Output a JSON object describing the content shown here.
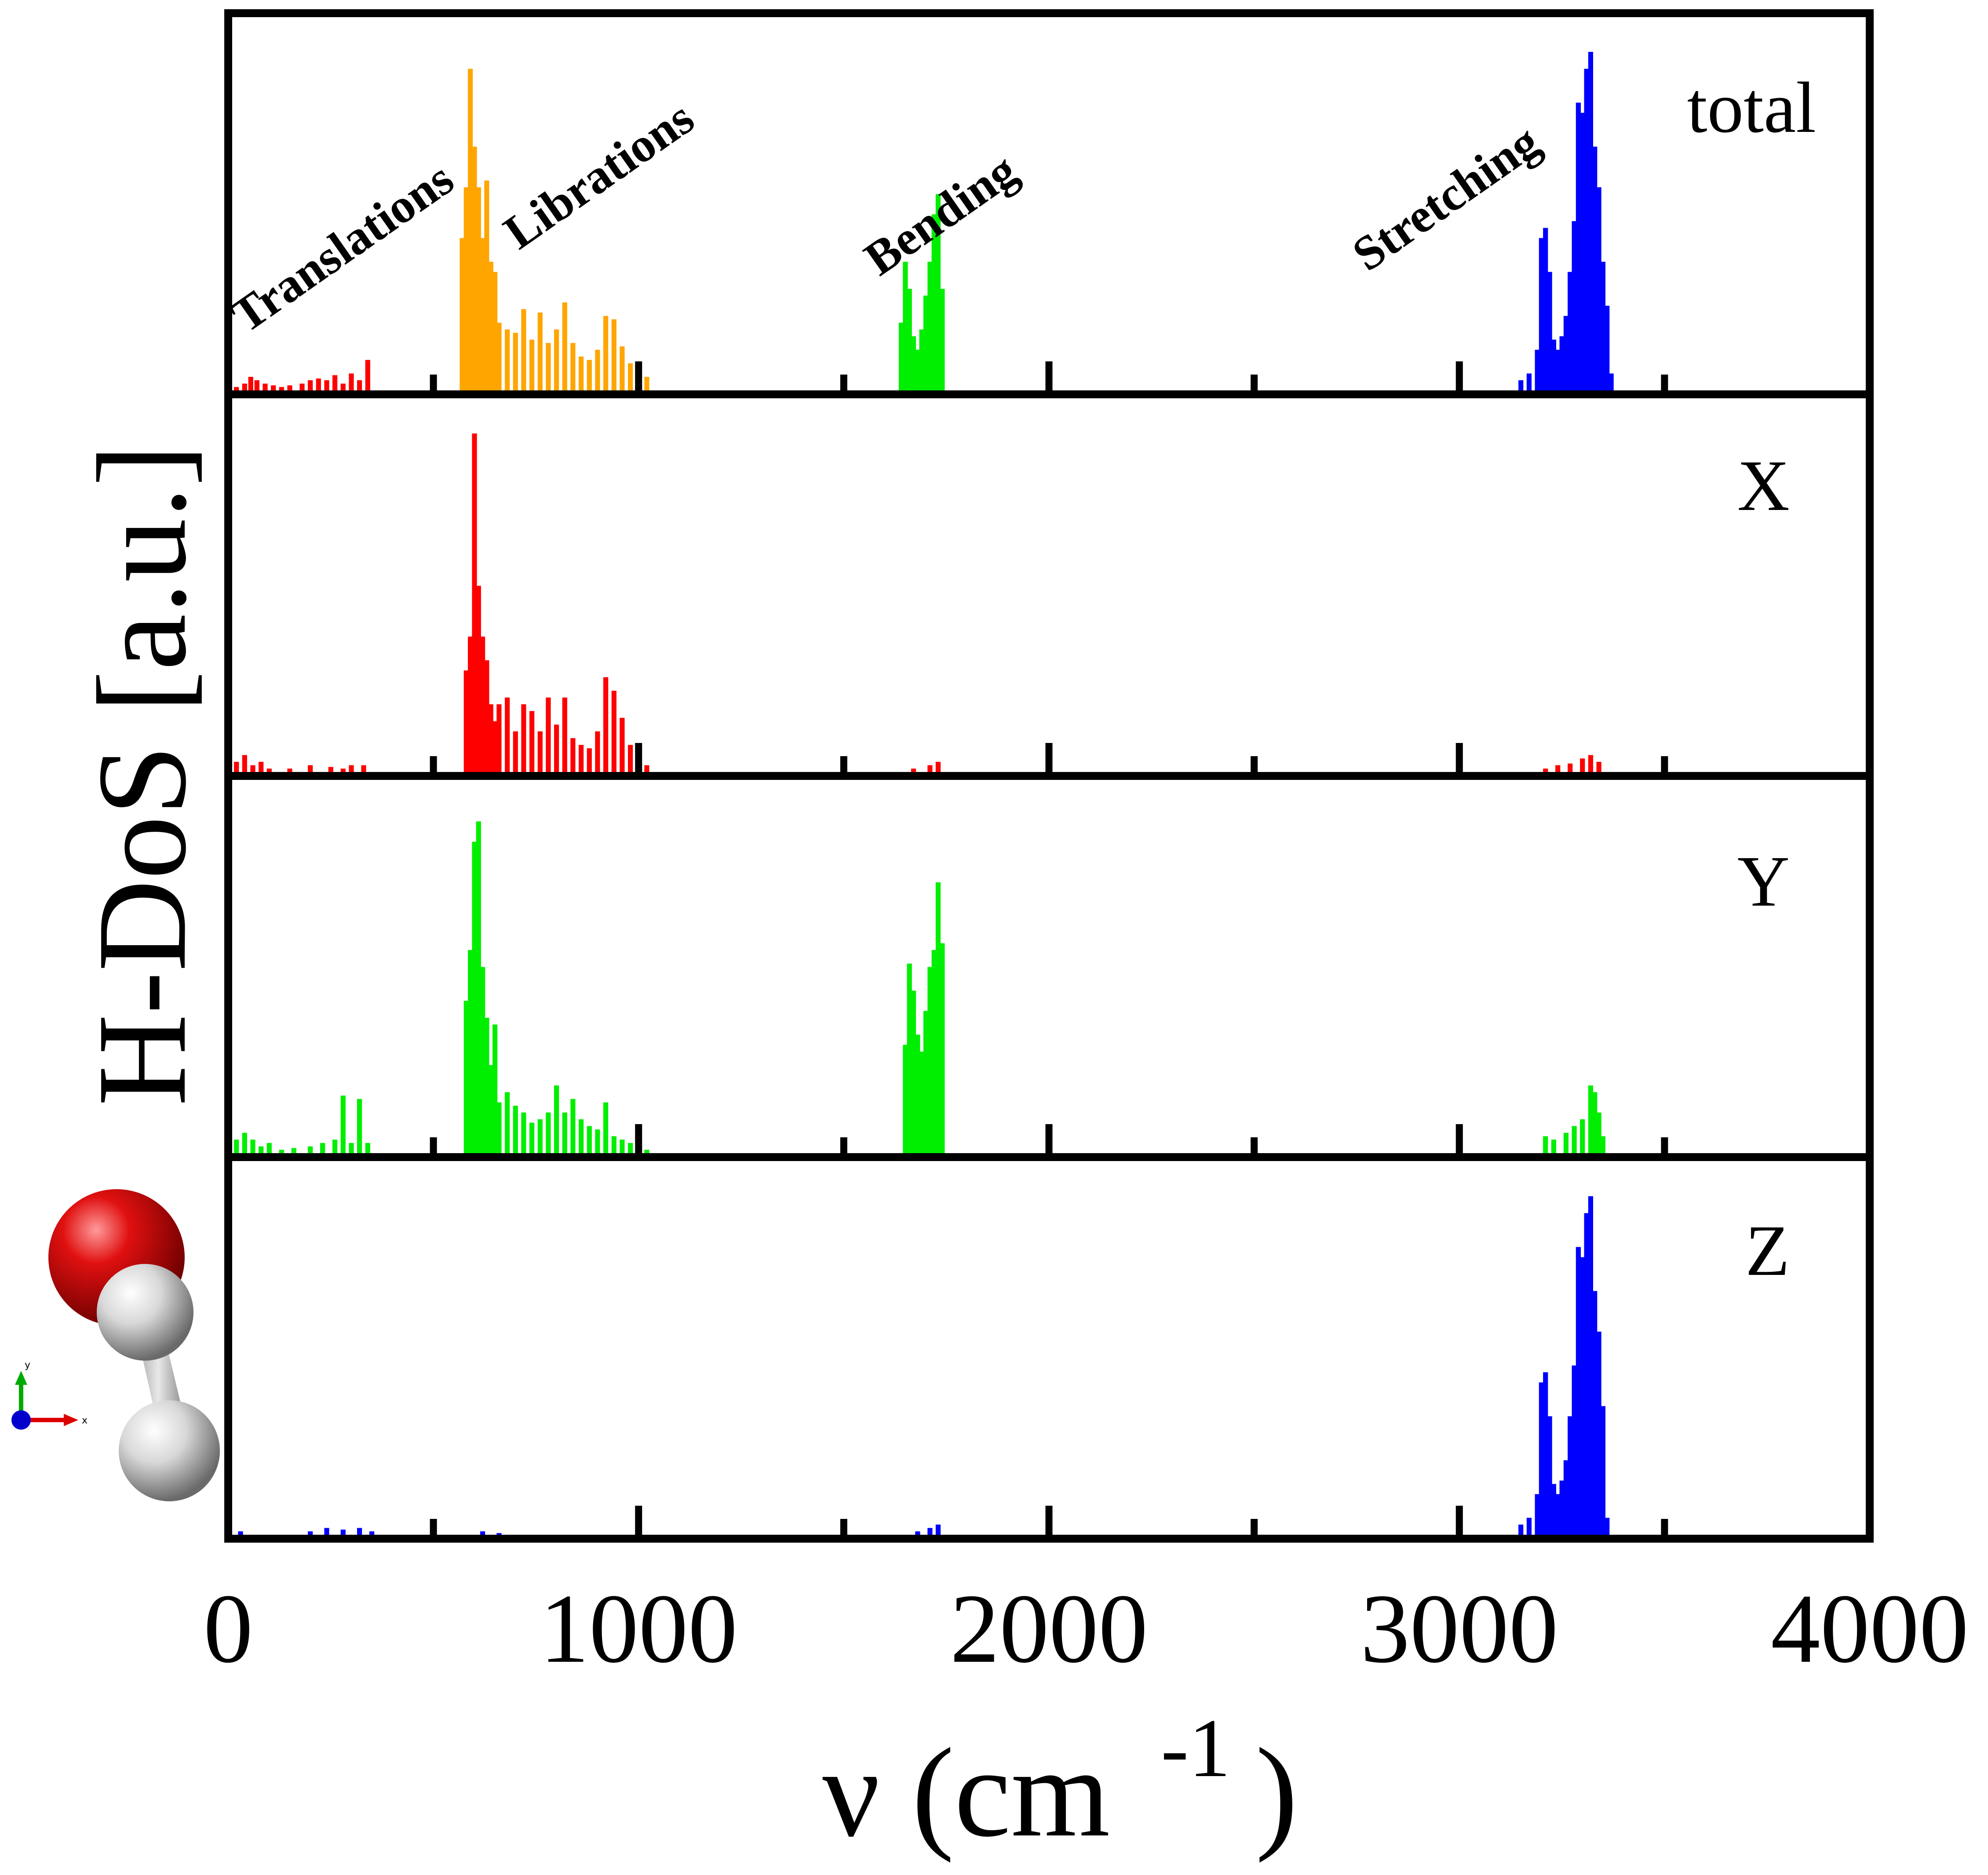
{
  "chart_data": {
    "type": "bar",
    "xlabel": "ν (cm",
    "xlabel_sup": "-1",
    "xlabel_close": ")",
    "ylabel": "H-DoS [a.u.]",
    "xlim": [
      0,
      4000
    ],
    "xticks": [
      "0",
      "1000",
      "2000",
      "3000",
      "4000"
    ],
    "bin_width_cm": 12,
    "mode_labels": [
      {
        "text": "Translations",
        "x": 40,
        "color": "#ff0000"
      },
      {
        "text": "Librations",
        "x": 650,
        "color": "#ffa500"
      },
      {
        "text": "Bending",
        "x": 1550,
        "color": "#00ee00"
      },
      {
        "text": "Stretching",
        "x": 2740,
        "color": "#0000ff"
      }
    ],
    "panels": [
      {
        "name": "total",
        "label": "total",
        "series": [
          {
            "band": "Translations",
            "color": "#ff0000",
            "x": [
              20,
              40,
              55,
              70,
              90,
              110,
              130,
              150,
              180,
              200,
              220,
              240,
              260,
              280,
              300,
              320,
              340
            ],
            "values": [
              0.01,
              0.02,
              0.04,
              0.03,
              0.02,
              0.015,
              0.01,
              0.015,
              0.02,
              0.03,
              0.035,
              0.03,
              0.045,
              0.02,
              0.05,
              0.03,
              0.09
            ]
          },
          {
            "band": "Librations",
            "color": "#ffa500",
            "x": [
              570,
              580,
              590,
              600,
              610,
              620,
              630,
              640,
              650,
              660,
              680,
              700,
              720,
              740,
              760,
              780,
              800,
              820,
              840,
              860,
              880,
              900,
              920,
              940,
              960,
              980,
              1000,
              1020
            ],
            "values": [
              0.45,
              0.6,
              0.95,
              0.72,
              0.6,
              0.45,
              0.62,
              0.38,
              0.35,
              0.2,
              0.18,
              0.17,
              0.24,
              0.15,
              0.23,
              0.14,
              0.18,
              0.26,
              0.14,
              0.1,
              0.09,
              0.12,
              0.22,
              0.21,
              0.13,
              0.08,
              0.05,
              0.04
            ]
          },
          {
            "band": "Bending",
            "color": "#00ee00",
            "x": [
              1640,
              1650,
              1660,
              1670,
              1680,
              1690,
              1700,
              1710,
              1720,
              1730,
              1740
            ],
            "values": [
              0.2,
              0.38,
              0.3,
              0.16,
              0.12,
              0.18,
              0.28,
              0.38,
              0.52,
              0.58,
              0.3
            ]
          },
          {
            "band": "Stretching",
            "color": "#0000ff",
            "x": [
              3150,
              3170,
              3190,
              3200,
              3210,
              3220,
              3230,
              3240,
              3250,
              3260,
              3270,
              3280,
              3290,
              3300,
              3310,
              3320,
              3330,
              3340,
              3350,
              3360,
              3370
            ],
            "values": [
              0.03,
              0.05,
              0.12,
              0.45,
              0.48,
              0.35,
              0.15,
              0.12,
              0.16,
              0.22,
              0.35,
              0.5,
              0.85,
              0.82,
              0.95,
              1.0,
              0.72,
              0.6,
              0.38,
              0.25,
              0.05
            ]
          }
        ]
      },
      {
        "name": "X",
        "label": "X",
        "series": [
          {
            "band": "all",
            "color": "#ff0000",
            "x": [
              20,
              40,
              60,
              80,
              100,
              150,
              200,
              250,
              280,
              300,
              330,
              580,
              590,
              600,
              610,
              620,
              630,
              640,
              650,
              660,
              680,
              700,
              720,
              740,
              760,
              780,
              800,
              820,
              840,
              860,
              880,
              900,
              920,
              940,
              960,
              980,
              1000,
              1020,
              1670,
              1710,
              1730,
              3210,
              3240,
              3270,
              3300,
              3320,
              3340
            ],
            "values": [
              0.03,
              0.05,
              0.02,
              0.03,
              0.01,
              0.01,
              0.02,
              0.015,
              0.01,
              0.02,
              0.02,
              0.3,
              0.4,
              1.0,
              0.55,
              0.4,
              0.33,
              0.2,
              0.15,
              0.2,
              0.22,
              0.12,
              0.2,
              0.18,
              0.12,
              0.22,
              0.14,
              0.22,
              0.1,
              0.08,
              0.07,
              0.12,
              0.28,
              0.24,
              0.16,
              0.08,
              0.05,
              0.02,
              0.01,
              0.02,
              0.03,
              0.01,
              0.02,
              0.025,
              0.04,
              0.05,
              0.03
            ]
          }
        ]
      },
      {
        "name": "Y",
        "label": "Y",
        "series": [
          {
            "band": "all",
            "color": "#00ee00",
            "x": [
              20,
              40,
              60,
              80,
              100,
              130,
              160,
              200,
              230,
              260,
              280,
              300,
              320,
              340,
              580,
              590,
              600,
              610,
              620,
              630,
              640,
              650,
              660,
              680,
              700,
              720,
              740,
              760,
              780,
              800,
              820,
              840,
              860,
              880,
              900,
              920,
              940,
              960,
              980,
              1000,
              1020,
              1650,
              1660,
              1670,
              1680,
              1690,
              1700,
              1710,
              1720,
              1730,
              1740,
              3210,
              3230,
              3260,
              3280,
              3300,
              3320,
              3330,
              3340,
              3350
            ],
            "values": [
              0.04,
              0.06,
              0.04,
              0.02,
              0.03,
              0.01,
              0.015,
              0.02,
              0.03,
              0.04,
              0.17,
              0.03,
              0.16,
              0.03,
              0.45,
              0.6,
              0.92,
              0.98,
              0.55,
              0.4,
              0.26,
              0.38,
              0.15,
              0.18,
              0.14,
              0.12,
              0.09,
              0.1,
              0.12,
              0.2,
              0.12,
              0.16,
              0.1,
              0.08,
              0.07,
              0.15,
              0.05,
              0.04,
              0.03,
              0.02,
              0.01,
              0.32,
              0.56,
              0.48,
              0.35,
              0.3,
              0.42,
              0.55,
              0.6,
              0.8,
              0.62,
              0.05,
              0.04,
              0.06,
              0.08,
              0.1,
              0.2,
              0.18,
              0.12,
              0.05
            ]
          }
        ]
      },
      {
        "name": "Z",
        "label": "Z",
        "series": [
          {
            "band": "all",
            "color": "#0000ff",
            "x": [
              30,
              200,
              240,
              280,
              320,
              350,
              620,
              660,
              1680,
              1710,
              1730,
              3150,
              3170,
              3190,
              3200,
              3210,
              3220,
              3230,
              3240,
              3250,
              3260,
              3270,
              3280,
              3290,
              3300,
              3310,
              3320,
              3330,
              3340,
              3350,
              3360
            ],
            "values": [
              0.01,
              0.01,
              0.02,
              0.015,
              0.02,
              0.01,
              0.01,
              0.005,
              0.01,
              0.02,
              0.03,
              0.03,
              0.05,
              0.12,
              0.45,
              0.48,
              0.35,
              0.15,
              0.12,
              0.16,
              0.22,
              0.35,
              0.5,
              0.85,
              0.82,
              0.95,
              1.0,
              0.72,
              0.6,
              0.38,
              0.05
            ]
          }
        ]
      }
    ]
  },
  "axes_icon": {
    "y_label": "y",
    "x_label": "x"
  },
  "colors": {
    "oxygen": "#dd0000",
    "hydrogen": "#d8d8d8",
    "axis_y": "#00aa00",
    "axis_x": "#dd0000",
    "axis_origin": "#0000cc"
  }
}
